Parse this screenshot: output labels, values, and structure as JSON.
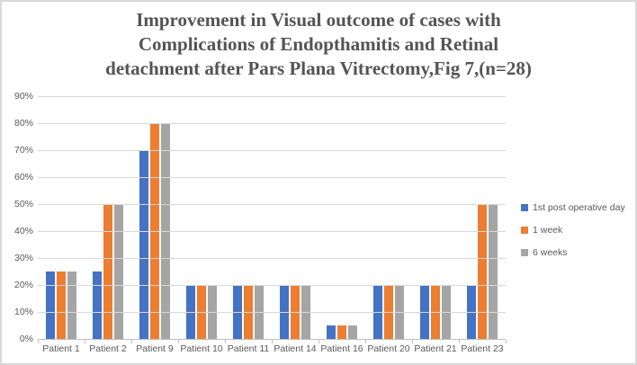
{
  "header": {
    "title_lines": [
      "Improvement in Visual outcome of cases with",
      "Complications of Endopthamitis and Retinal",
      "detachment after Pars Plana Vitrectomy,Fig 7,(n=28)"
    ]
  },
  "chart_data": {
    "type": "bar",
    "title": "Improvement in Visual outcome of cases with Complications of Endopthamitis and Retinal detachment after Pars Plana Vitrectomy,Fig 7,(n=28)",
    "categories": [
      "Patient 1",
      "Patient 2",
      "Patient 9",
      "Patient 10",
      "Patient 11",
      "Patient 14",
      "Patient 16",
      "Patient 20",
      "Patient 21",
      "Patient 23"
    ],
    "series": [
      {
        "name": "1st post operative day",
        "color": "#4472C4",
        "values": [
          25,
          25,
          70,
          20,
          20,
          20,
          5,
          20,
          20,
          20
        ]
      },
      {
        "name": "1 week",
        "color": "#ED7D31",
        "values": [
          25,
          50,
          80,
          20,
          20,
          20,
          5,
          20,
          20,
          50
        ]
      },
      {
        "name": "6 weeks",
        "color": "#A5A5A5",
        "values": [
          25,
          50,
          80,
          20,
          20,
          20,
          5,
          20,
          20,
          50
        ]
      }
    ],
    "ylabel": "",
    "xlabel": "",
    "ylim": [
      0,
      90
    ],
    "ytick_step": 10,
    "yticks": [
      "0%",
      "10%",
      "20%",
      "30%",
      "40%",
      "50%",
      "60%",
      "70%",
      "80%",
      "90%"
    ],
    "grid": true,
    "legend_position": "right",
    "colors": {
      "gridline": "#D9D9D9",
      "axis_line": "#BFBFBF",
      "tick_text": "#595959",
      "title_text": "#545454",
      "frame_border": "#D9D9D9"
    }
  }
}
